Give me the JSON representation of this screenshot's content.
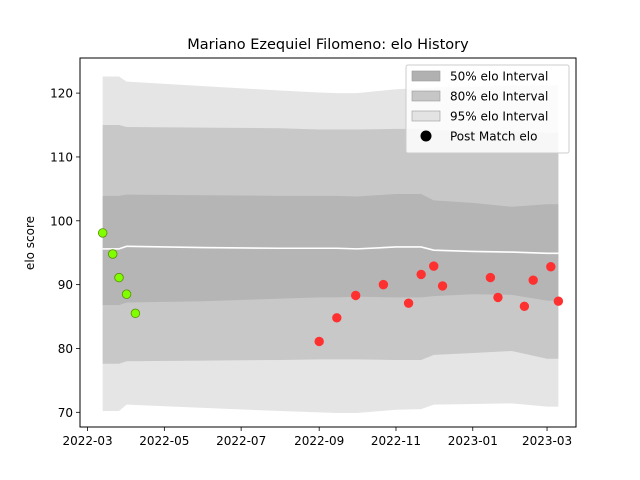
{
  "chart_data": {
    "type": "line",
    "title": "Mariano Ezequiel Filomeno: elo History",
    "xlabel": "",
    "ylabel": "elo score",
    "xlim": [
      "2022-02-23",
      "2023-03-24"
    ],
    "ylim": [
      67.7,
      125.5
    ],
    "x_ticks": [
      "2022-03",
      "2022-05",
      "2022-07",
      "2022-09",
      "2022-11",
      "2023-01",
      "2023-03"
    ],
    "y_ticks": [
      70,
      80,
      90,
      100,
      110,
      120
    ],
    "grid": false,
    "legend_position": "top-right",
    "legend": [
      {
        "label": "50% elo Interval",
        "kind": "band",
        "color": "#a9a9a9"
      },
      {
        "label": "80% elo Interval",
        "kind": "band",
        "color": "#c0c0c0"
      },
      {
        "label": "95% elo Interval",
        "kind": "band",
        "color": "#e0e0e0"
      },
      {
        "label": "Post Match elo",
        "kind": "marker",
        "color": "#000000"
      }
    ],
    "band_x": [
      "2022-03-13",
      "2022-03-26",
      "2022-04-01",
      "2022-06-01",
      "2022-08-01",
      "2022-09-01",
      "2022-09-15",
      "2022-10-01",
      "2022-11-01",
      "2022-11-21",
      "2022-12-01",
      "2023-01-01",
      "2023-02-01",
      "2023-03-01",
      "2023-03-10"
    ],
    "mean": [
      95.6,
      95.6,
      96.0,
      95.8,
      95.7,
      95.7,
      95.7,
      95.6,
      95.9,
      95.9,
      95.4,
      95.2,
      95.1,
      94.9,
      94.9
    ],
    "band50_upper": [
      103.9,
      103.9,
      104.1,
      104.0,
      103.9,
      103.9,
      103.9,
      103.8,
      104.2,
      104.2,
      103.2,
      102.8,
      102.2,
      102.6,
      102.6
    ],
    "band50_lower": [
      86.8,
      86.8,
      87.2,
      87.4,
      87.8,
      88.0,
      88.0,
      88.1,
      88.0,
      88.0,
      88.2,
      88.5,
      88.4,
      87.5,
      87.5
    ],
    "band80_upper": [
      115.0,
      115.0,
      114.7,
      114.6,
      114.5,
      114.3,
      114.3,
      114.3,
      114.4,
      114.4,
      114.2,
      114.2,
      114.0,
      113.8,
      113.8
    ],
    "band80_lower": [
      77.6,
      77.6,
      78.0,
      78.1,
      78.2,
      78.3,
      78.3,
      78.3,
      78.2,
      78.2,
      79.0,
      79.3,
      79.6,
      78.4,
      78.4
    ],
    "band95_upper": [
      122.6,
      122.6,
      121.8,
      121.1,
      120.4,
      120.1,
      120.0,
      120.0,
      120.6,
      120.8,
      120.9,
      121.0,
      121.2,
      121.2,
      121.2
    ],
    "band95_lower": [
      70.2,
      70.2,
      71.2,
      70.7,
      70.2,
      70.0,
      69.9,
      69.9,
      70.4,
      70.5,
      71.2,
      71.3,
      71.4,
      70.9,
      70.9
    ],
    "series": [
      {
        "name": "Post Match elo",
        "segment": "green",
        "color": "#7fff00",
        "edge": "#5a8f00",
        "x": [
          "2022-03-13",
          "2022-03-21",
          "2022-03-26",
          "2022-04-01",
          "2022-04-08"
        ],
        "y": [
          98.1,
          94.8,
          91.1,
          88.5,
          85.5
        ]
      },
      {
        "name": "Post Match elo",
        "segment": "red",
        "color": "#ff3030",
        "edge": "#ff3030",
        "x": [
          "2022-09-01",
          "2022-09-15",
          "2022-09-30",
          "2022-10-22",
          "2022-11-11",
          "2022-11-21",
          "2022-12-01",
          "2022-12-08",
          "2023-01-15",
          "2023-01-21",
          "2023-02-11",
          "2023-02-18",
          "2023-03-04",
          "2023-03-10"
        ],
        "y": [
          81.1,
          84.8,
          88.3,
          90.0,
          87.1,
          91.6,
          92.9,
          89.8,
          91.1,
          88.0,
          86.6,
          90.7,
          92.8,
          87.4
        ]
      }
    ]
  }
}
